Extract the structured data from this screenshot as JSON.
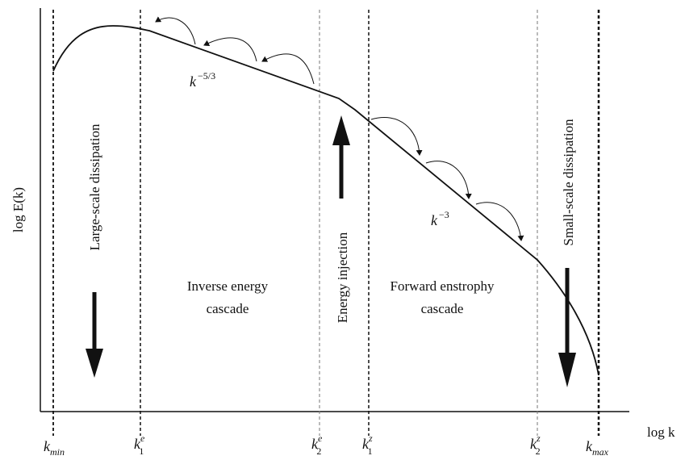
{
  "axes": {
    "y_label": "log E(k)",
    "x_label": "log k"
  },
  "slopes": {
    "inverse_base": "k",
    "inverse_exp": "−5/3",
    "forward_base": "k",
    "forward_exp": "−3"
  },
  "regions": {
    "large_scale": "Large-scale dissipation",
    "inverse_line1": "Inverse energy",
    "inverse_line2": "cascade",
    "injection": "Energy injection",
    "forward_line1": "Forward enstrophy",
    "forward_line2": "cascade",
    "small_scale": "Small-scale dissipation"
  },
  "ticks": {
    "kmin": {
      "base": "k",
      "sub": "min"
    },
    "k1e": {
      "base": "k",
      "sup": "e",
      "sub": "1"
    },
    "k2e": {
      "base": "k",
      "sup": "e",
      "sub": "2"
    },
    "k1z": {
      "base": "k",
      "sup": "z",
      "sub": "1"
    },
    "k2z": {
      "base": "k",
      "sup": "z",
      "sub": "2"
    },
    "kmax": {
      "base": "k",
      "sub": "max"
    }
  },
  "colors": {
    "ink": "#111111",
    "guide": "#222222",
    "guide_light": "#888888"
  }
}
